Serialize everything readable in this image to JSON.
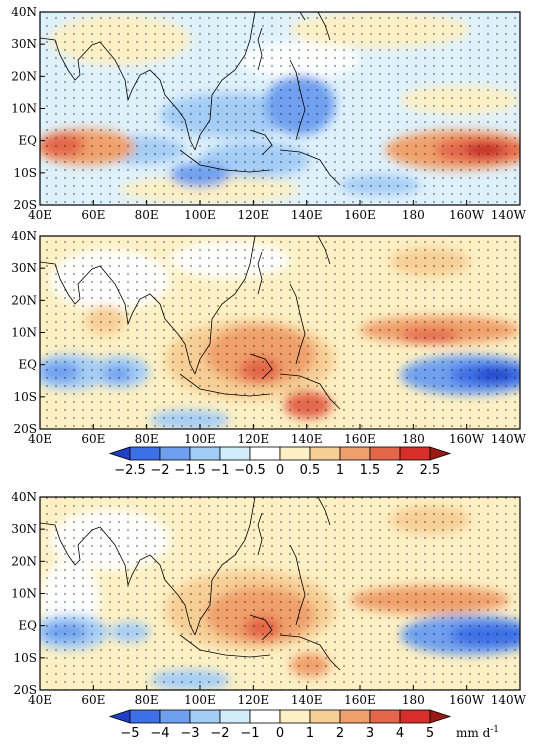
{
  "panels": [
    {
      "id": "panel-1",
      "description_free": true
    },
    {
      "id": "panel-2",
      "description_free": true
    },
    {
      "id": "panel-3",
      "description_free": true
    }
  ],
  "axes": {
    "lat_ticks": [
      "40N",
      "30N",
      "20N",
      "10N",
      "EQ",
      "10S",
      "20S"
    ],
    "lon_ticks": [
      "40E",
      "60E",
      "80E",
      "100E",
      "120E",
      "140E",
      "160E",
      "180",
      "160W",
      "140W"
    ]
  },
  "colorbar_top": {
    "ticks": [
      "−2.5",
      "−2",
      "−1.5",
      "−1",
      "−0.5",
      "0",
      "0.5",
      "1",
      "1.5",
      "2",
      "2.5"
    ],
    "colors": [
      "#1f3fc8",
      "#3d6fe6",
      "#6fa0ef",
      "#a4cdf6",
      "#d3ecfa",
      "#ffffff",
      "#fdf0c4",
      "#f7cf96",
      "#f0a06c",
      "#e4674c",
      "#d62f2a",
      "#9a1b16"
    ]
  },
  "colorbar_bottom": {
    "ticks": [
      "−5",
      "−4",
      "−3",
      "−2",
      "−1",
      "0",
      "1",
      "2",
      "3",
      "4",
      "5"
    ],
    "unit": "mm d",
    "unit_sup": "-1",
    "colors": [
      "#1f3fc8",
      "#3d6fe6",
      "#6fa0ef",
      "#a4cdf6",
      "#d3ecfa",
      "#ffffff",
      "#fdf0c4",
      "#f7cf96",
      "#f0a06c",
      "#e4674c",
      "#d62f2a",
      "#9a1b16"
    ]
  }
}
